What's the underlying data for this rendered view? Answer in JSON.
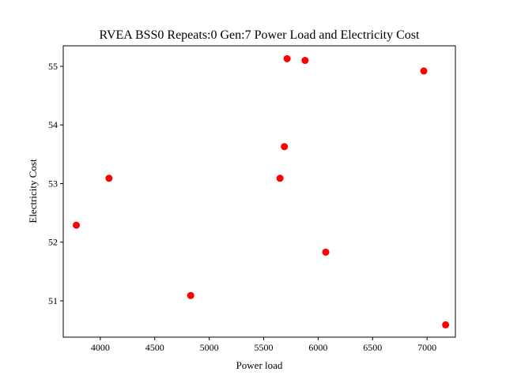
{
  "chart_data": {
    "type": "scatter",
    "title": "RVEA BSS0 Repeats:0 Gen:7 Power Load and Electricity Cost",
    "xlabel": "Power load",
    "ylabel": "Electricity Cost",
    "xlim": [
      3660,
      7260
    ],
    "ylim": [
      50.38,
      55.35
    ],
    "xticks": [
      4000,
      4500,
      5000,
      5500,
      6000,
      6500,
      7000
    ],
    "yticks": [
      51,
      52,
      53,
      54,
      55
    ],
    "grid": false,
    "marker_color": "#ff0000",
    "points": [
      {
        "x": 3780,
        "y": 52.29
      },
      {
        "x": 4080,
        "y": 53.09
      },
      {
        "x": 4830,
        "y": 51.09
      },
      {
        "x": 5650,
        "y": 53.09
      },
      {
        "x": 5690,
        "y": 53.63
      },
      {
        "x": 5715,
        "y": 55.13
      },
      {
        "x": 5880,
        "y": 55.1
      },
      {
        "x": 6070,
        "y": 51.83
      },
      {
        "x": 6970,
        "y": 54.92
      },
      {
        "x": 7170,
        "y": 50.59
      }
    ]
  }
}
